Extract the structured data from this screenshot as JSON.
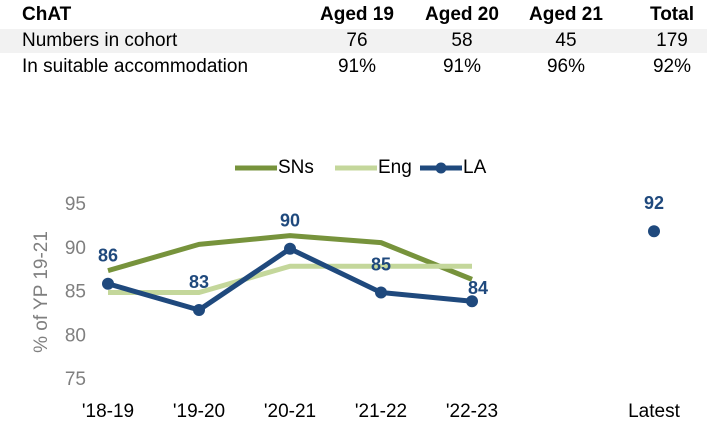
{
  "table": {
    "header": [
      "ChAT",
      "Aged 19",
      "Aged 20",
      "Aged 21",
      "Total"
    ],
    "rows": [
      [
        "Numbers in cohort",
        76,
        58,
        45,
        179
      ],
      [
        "In suitable accommodation",
        "91%",
        "91%",
        "96%",
        "92%"
      ]
    ]
  },
  "chart_data": {
    "type": "line",
    "y_label": "% of YP 19-21",
    "categories": [
      "'18-19",
      "'19-20",
      "'20-21",
      "'21-22",
      "'22-23",
      null,
      "Latest"
    ],
    "series": [
      {
        "name": "SNs",
        "color": "#77933c",
        "values": [
          87.5,
          90.5,
          91.5,
          90.7,
          86.5,
          null,
          null
        ]
      },
      {
        "name": "Eng",
        "color": "#c4d79b",
        "values": [
          85,
          85,
          88,
          88,
          88,
          null,
          null
        ]
      },
      {
        "name": "LA",
        "color": "#1f497d",
        "values": [
          86,
          83,
          90,
          85,
          84,
          null,
          92
        ],
        "markers": true,
        "data_labels": true
      }
    ],
    "ylim": [
      75,
      95
    ],
    "yticks": [
      75,
      80,
      85,
      90,
      95
    ],
    "grid": false,
    "legend": "top"
  }
}
